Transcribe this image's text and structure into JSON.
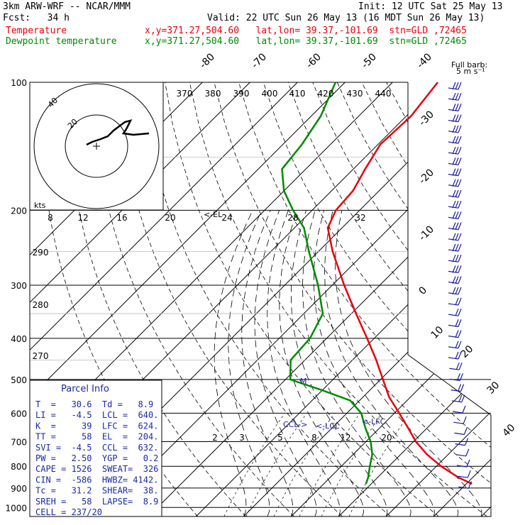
{
  "header": {
    "model": "3km ARW-WRF -- NCAR/MMM",
    "init": "Init: 12 UTC Sat 25 May 13",
    "fcst": "Fcst:   34 h",
    "valid": "Valid: 22 UTC Sun 26 May 13 (16 MDT Sun 26 May 13)",
    "temp_label": "Temperature",
    "dew_label": "Dewpoint temperature",
    "temp_meta": "x,y=371.27,504.60   lat,lon= 39.37,-101.69  stn=GLD ,72465",
    "dew_meta": "x,y=371.27,504.60   lat,lon= 39.37,-101.69  stn=GLD ,72465"
  },
  "colors": {
    "temperature": "#e8000b",
    "dewpoint": "#008a00",
    "parcel_text": "#1a2aa0",
    "barbs": "#1a1a9a"
  },
  "chart_data": {
    "type": "skew-t",
    "pressure_ticks": [
      100,
      200,
      300,
      400,
      500,
      600,
      700,
      800,
      900,
      1000
    ],
    "skewed_temperature_labels": [
      -80,
      -70,
      -60,
      -50,
      -40,
      -30,
      -20,
      -10,
      0,
      10,
      20,
      30,
      40
    ],
    "theta_e_labels": [
      370,
      380,
      390,
      400,
      410,
      420,
      430,
      440,
      290,
      280,
      270
    ],
    "mixing_ratio_labels_upper": [
      8,
      12,
      16,
      20,
      24,
      28,
      32
    ],
    "mixing_ratio_labels_lower": [
      2,
      3,
      5,
      8,
      12,
      20
    ],
    "temperature_profile": [
      {
        "p": 880,
        "t": 31.2
      },
      {
        "p": 850,
        "t": 27.0
      },
      {
        "p": 800,
        "t": 21.0
      },
      {
        "p": 750,
        "t": 15.5
      },
      {
        "p": 700,
        "t": 10.5
      },
      {
        "p": 650,
        "t": 6.0
      },
      {
        "p": 600,
        "t": 1.0
      },
      {
        "p": 550,
        "t": -4.5
      },
      {
        "p": 500,
        "t": -9.5
      },
      {
        "p": 450,
        "t": -15.0
      },
      {
        "p": 400,
        "t": -21.5
      },
      {
        "p": 350,
        "t": -29.0
      },
      {
        "p": 300,
        "t": -37.5
      },
      {
        "p": 250,
        "t": -47.0
      },
      {
        "p": 220,
        "t": -53.0
      },
      {
        "p": 200,
        "t": -55.0
      },
      {
        "p": 180,
        "t": -55.5
      },
      {
        "p": 160,
        "t": -57.5
      },
      {
        "p": 140,
        "t": -59.5
      },
      {
        "p": 120,
        "t": -59.0
      },
      {
        "p": 100,
        "t": -60.5
      }
    ],
    "dewpoint_profile": [
      {
        "p": 880,
        "t": 8.9
      },
      {
        "p": 850,
        "t": 8.0
      },
      {
        "p": 800,
        "t": 6.0
      },
      {
        "p": 750,
        "t": 4.0
      },
      {
        "p": 700,
        "t": 1.0
      },
      {
        "p": 650,
        "t": -3.0
      },
      {
        "p": 600,
        "t": -7.0
      },
      {
        "p": 560,
        "t": -12.0
      },
      {
        "p": 530,
        "t": -20.0
      },
      {
        "p": 500,
        "t": -29.0
      },
      {
        "p": 450,
        "t": -33.0
      },
      {
        "p": 400,
        "t": -33.5
      },
      {
        "p": 350,
        "t": -36.0
      },
      {
        "p": 300,
        "t": -43.0
      },
      {
        "p": 250,
        "t": -52.0
      },
      {
        "p": 220,
        "t": -58.0
      },
      {
        "p": 200,
        "t": -64.0
      },
      {
        "p": 180,
        "t": -70.0
      },
      {
        "p": 160,
        "t": -75.0
      },
      {
        "p": 140,
        "t": -76.0
      },
      {
        "p": 120,
        "t": -78.0
      },
      {
        "p": 100,
        "t": -82.0
      }
    ],
    "level_markers": [
      "LFC",
      "LCL",
      "CCL",
      "EL",
      "M"
    ],
    "hodograph": {
      "units": "kts",
      "ring_labels": [
        "20",
        "40"
      ]
    },
    "wind_barb_scale": {
      "title": "Full barb:",
      "value": "5 m s⁻¹"
    }
  },
  "parcel_info": {
    "title": "Parcel Info",
    "rows": [
      "T  =   30.6  Td =   8.9",
      "LI =   -4.5  LCL =  640.",
      "K  =     39  LFC =  624.",
      "TT =     58  EL  =  204.",
      "SVI =  -4.5  CCL =  632.",
      "PW =   2.50  YGP =   0.2",
      "CAPE = 1526  SWEAT=  326",
      "CIN =  -586  HWBZ= 4142.",
      "Tc =   31.2  SHEAR=  38.",
      "SREH =   58  LAPSE=  8.9",
      "CELL = 237/20"
    ]
  }
}
